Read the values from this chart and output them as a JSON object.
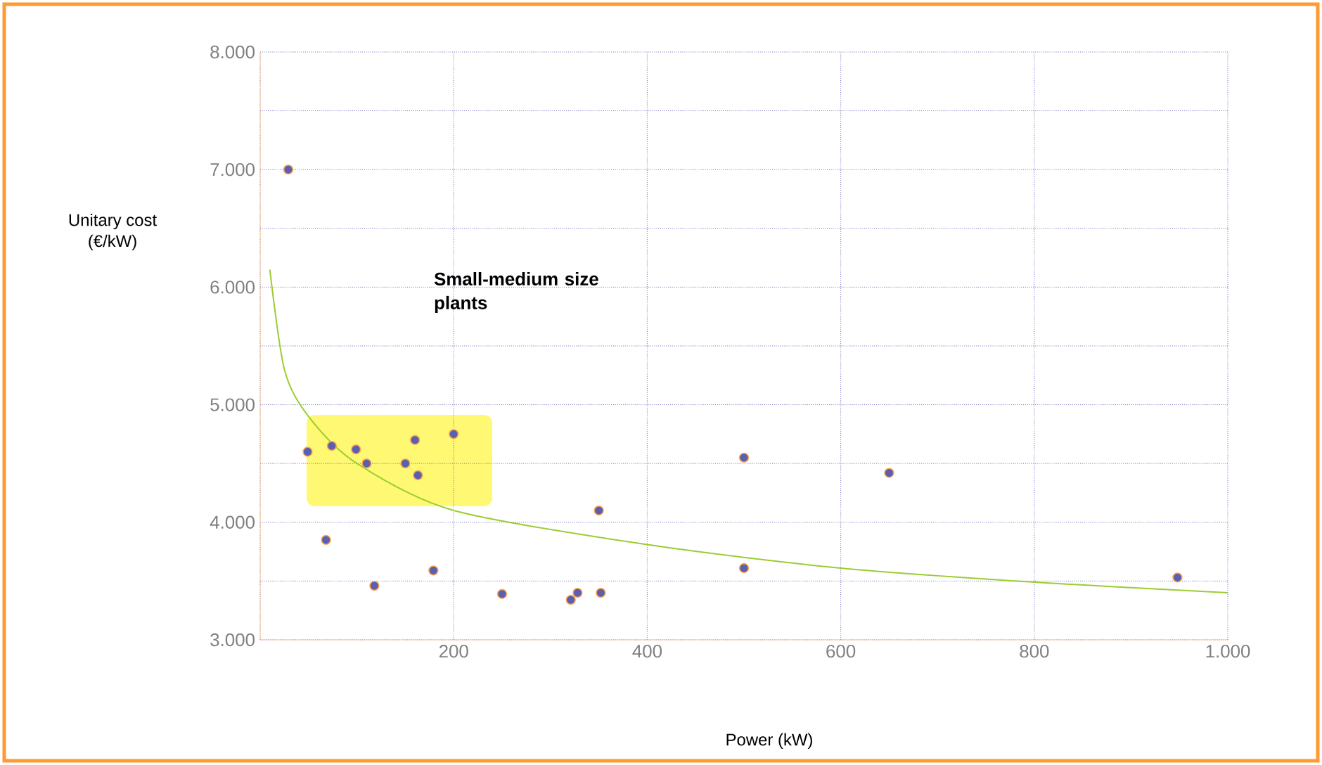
{
  "chart_data": {
    "type": "scatter",
    "xlabel": "Power (kW)",
    "ylabel": "Unitary cost (€/kW)",
    "annotations": [
      "Small-medium size plants"
    ],
    "xlim": [
      0,
      1000
    ],
    "ylim": [
      3000,
      8000
    ],
    "xticks": [
      {
        "value": 0,
        "label": null
      },
      200,
      400,
      600,
      800,
      {
        "value": 1000,
        "label": "1.000"
      }
    ],
    "yticks": [
      {
        "value": 3000,
        "label": "3.000"
      },
      {
        "value": 3500,
        "label": null
      },
      {
        "value": 4000,
        "label": "4.000"
      },
      {
        "value": 4500,
        "label": null
      },
      {
        "value": 5000,
        "label": "5.000"
      },
      {
        "value": 5500,
        "label": null
      },
      {
        "value": 6000,
        "label": "6.000"
      },
      {
        "value": 6500,
        "label": null
      },
      {
        "value": 7000,
        "label": "7.000"
      },
      {
        "value": 7500,
        "label": null
      },
      {
        "value": 8000,
        "label": "8.000"
      }
    ],
    "grid": true,
    "series": [
      {
        "color": "#5b5fb0",
        "marker": "circle",
        "x": [
          29,
          49,
          74,
          99,
          110,
          150,
          160,
          163,
          200,
          68,
          118,
          179,
          250,
          321,
          328,
          352,
          350,
          500,
          500,
          650,
          948
        ],
        "values": [
          7000,
          4600,
          4650,
          4620,
          4500,
          4500,
          4700,
          4400,
          4750,
          3850,
          3460,
          3590,
          3390,
          3340,
          3400,
          3400,
          4100,
          4550,
          3610,
          4420,
          3530
        ]
      },
      {
        "type": "line",
        "color": "#9acd32",
        "marker": "none",
        "x": [
          10,
          25,
          50,
          100,
          200,
          400,
          600,
          800,
          1000
        ],
        "values": [
          6150,
          5300,
          4900,
          4500,
          4100,
          3810,
          3610,
          3490,
          3400
        ]
      }
    ]
  }
}
